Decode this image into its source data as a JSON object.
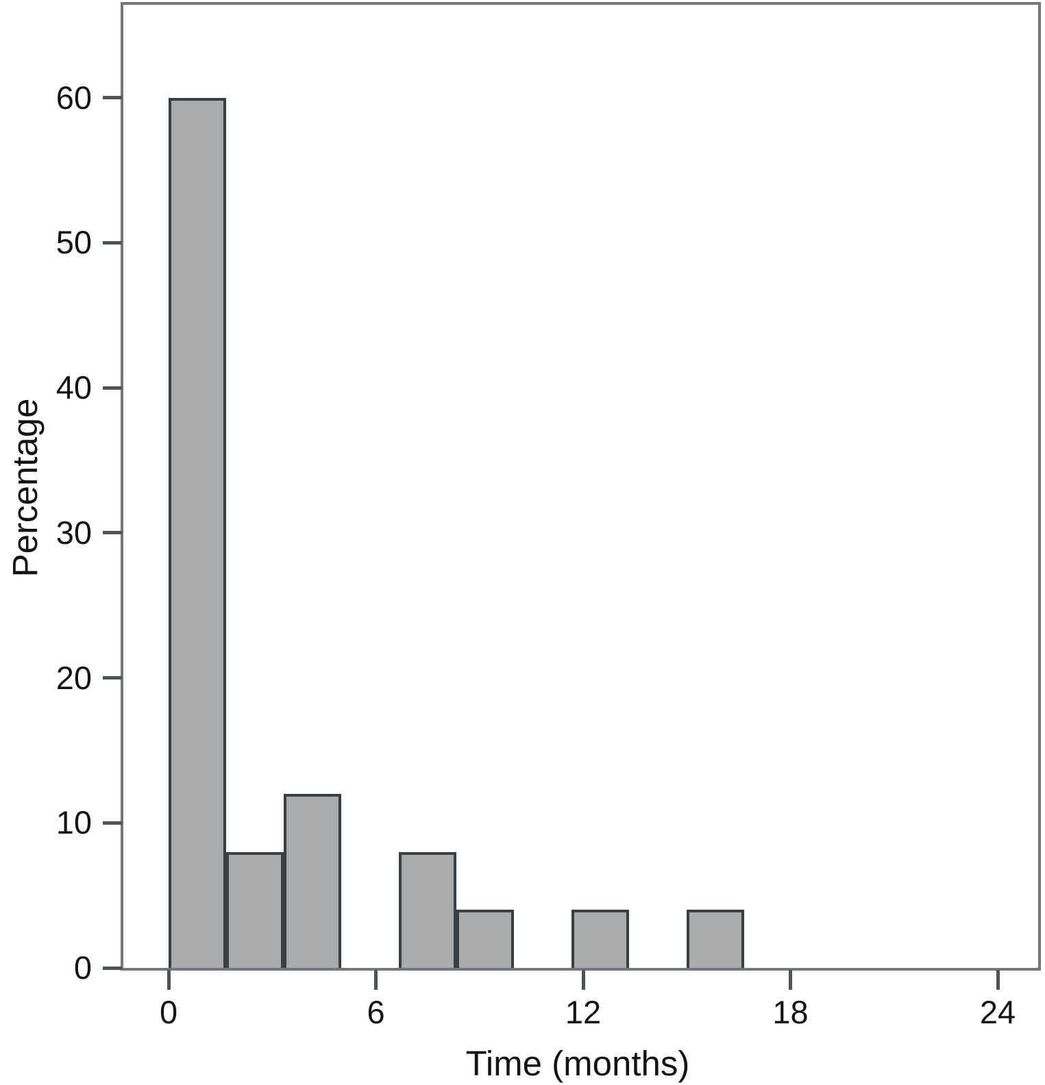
{
  "figure": {
    "background": "#ffffff",
    "text_color": "#141414"
  },
  "chart_data": {
    "type": "bar",
    "variant": "histogram",
    "xlabel": "Time (months)",
    "ylabel": "Percentage",
    "x_ticks": [
      0,
      6,
      12,
      18,
      24
    ],
    "y_ticks": [
      0,
      10,
      20,
      30,
      40,
      50,
      60
    ],
    "xlim": [
      -1.31,
      25.17
    ],
    "ylim": [
      0,
      66.4
    ],
    "bin_width_months": 1.667,
    "grid": false,
    "legend": false,
    "bars": [
      {
        "x_start": 0,
        "x_end": 1.667,
        "value": 60
      },
      {
        "x_start": 1.667,
        "x_end": 3.333,
        "value": 8
      },
      {
        "x_start": 3.333,
        "x_end": 5,
        "value": 12
      },
      {
        "x_start": 6.667,
        "x_end": 8.333,
        "value": 8
      },
      {
        "x_start": 8.333,
        "x_end": 10,
        "value": 4
      },
      {
        "x_start": 11.667,
        "x_end": 13.333,
        "value": 4
      },
      {
        "x_start": 15,
        "x_end": 16.667,
        "value": 4
      }
    ],
    "colors": {
      "bar_fill": "#a9abad",
      "bar_border": "#3c3f42",
      "frame": "#74777a",
      "tick": "#505356"
    }
  }
}
